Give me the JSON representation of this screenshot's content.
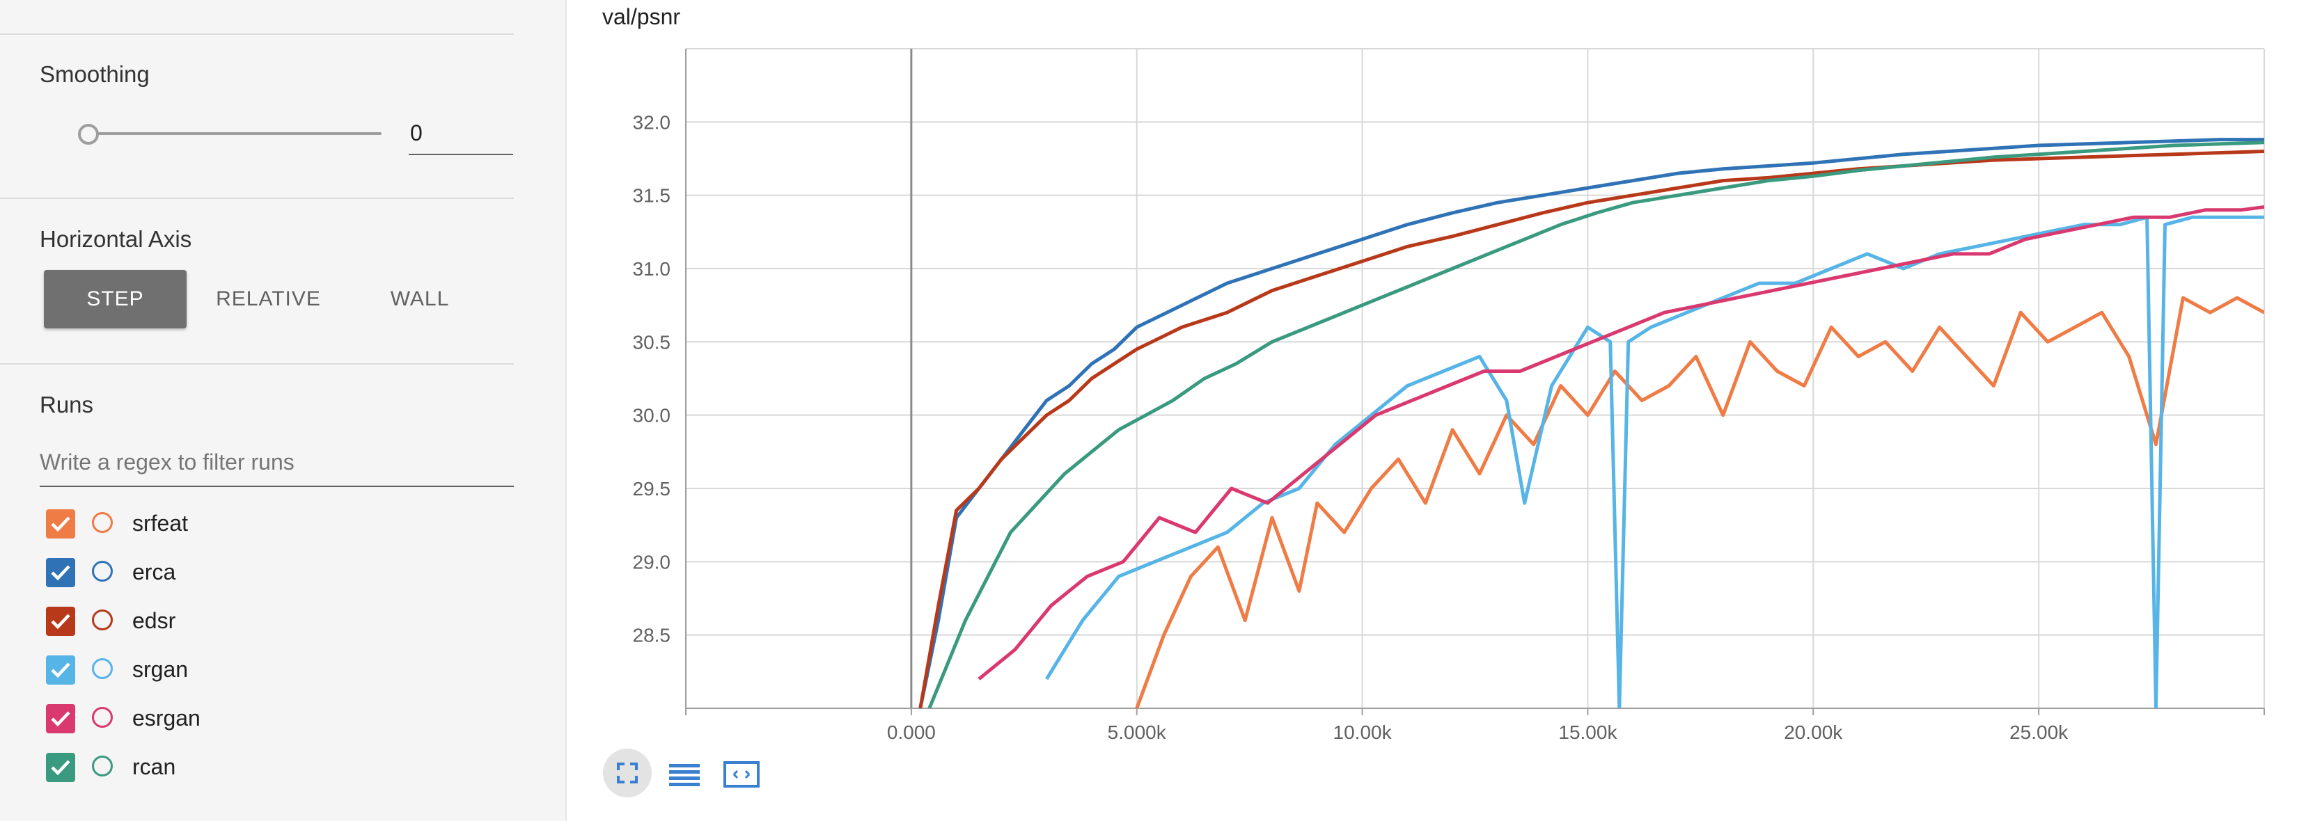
{
  "sidebar": {
    "smoothing": {
      "title": "Smoothing",
      "value": "0",
      "slider_level": 0
    },
    "horizontal_axis": {
      "title": "Horizontal Axis",
      "options": [
        {
          "label": "STEP",
          "active": true
        },
        {
          "label": "RELATIVE",
          "active": false
        },
        {
          "label": "WALL",
          "active": false
        }
      ]
    },
    "runs": {
      "title": "Runs",
      "filter_placeholder": "Write a regex to filter runs",
      "items": [
        {
          "name": "srfeat",
          "color": "#ef7b45",
          "checked": true
        },
        {
          "name": "erca",
          "color": "#2f73b6",
          "checked": true
        },
        {
          "name": "edsr",
          "color": "#b8391a",
          "checked": true
        },
        {
          "name": "srgan",
          "color": "#56b4e6",
          "checked": true
        },
        {
          "name": "esrgan",
          "color": "#d9396f",
          "checked": true
        },
        {
          "name": "rcan",
          "color": "#3a9a7f",
          "checked": true
        }
      ]
    }
  },
  "chart_data": {
    "type": "line",
    "title": "val/psnr",
    "x_tick_labels": [
      "0.000",
      "5.000k",
      "10.00k",
      "15.00k",
      "20.00k",
      "25.00k"
    ],
    "x_ticks": [
      0,
      5000,
      10000,
      15000,
      20000,
      25000
    ],
    "y_tick_labels": [
      "28.5",
      "29.0",
      "29.5",
      "30.0",
      "30.5",
      "31.0",
      "31.5",
      "32.0"
    ],
    "y_ticks": [
      28.5,
      29.0,
      29.5,
      30.0,
      30.5,
      31.0,
      31.5,
      32.0
    ],
    "xlim": [
      -5000,
      30000
    ],
    "ylim": [
      28.0,
      32.5
    ],
    "grid": true,
    "series": [
      {
        "name": "srfeat",
        "color": "#ef7b45",
        "x": [
          5000,
          5600,
          6200,
          6800,
          7400,
          8000,
          8600,
          9000,
          9600,
          10200,
          10800,
          11400,
          12000,
          12600,
          13200,
          13800,
          14400,
          15000,
          15600,
          16200,
          16800,
          17400,
          18000,
          18600,
          19200,
          19800,
          20400,
          21000,
          21600,
          22200,
          22800,
          23400,
          24000,
          24600,
          25200,
          25800,
          26400,
          27000,
          27600,
          28200,
          28800,
          29400,
          30000
        ],
        "y": [
          28.0,
          28.5,
          28.9,
          29.1,
          28.6,
          29.3,
          28.8,
          29.4,
          29.2,
          29.5,
          29.7,
          29.4,
          29.9,
          29.6,
          30.0,
          29.8,
          30.2,
          30.0,
          30.3,
          30.1,
          30.2,
          30.4,
          30.0,
          30.5,
          30.3,
          30.2,
          30.6,
          30.4,
          30.5,
          30.3,
          30.6,
          30.4,
          30.2,
          30.7,
          30.5,
          30.6,
          30.7,
          30.4,
          29.8,
          30.8,
          30.7,
          30.8,
          30.7
        ]
      },
      {
        "name": "erca",
        "color": "#2f73b6",
        "x": [
          200,
          600,
          1000,
          1500,
          2000,
          2500,
          3000,
          3500,
          4000,
          4500,
          5000,
          6000,
          7000,
          8000,
          9000,
          10000,
          11000,
          12000,
          13000,
          14000,
          15000,
          16000,
          17000,
          18000,
          19000,
          20000,
          21000,
          22000,
          23000,
          24000,
          25000,
          26000,
          27000,
          28000,
          29000,
          30000
        ],
        "y": [
          28.0,
          28.6,
          29.3,
          29.5,
          29.7,
          29.9,
          30.1,
          30.2,
          30.35,
          30.45,
          30.6,
          30.75,
          30.9,
          31.0,
          31.1,
          31.2,
          31.3,
          31.38,
          31.45,
          31.5,
          31.55,
          31.6,
          31.65,
          31.68,
          31.7,
          31.72,
          31.75,
          31.78,
          31.8,
          31.82,
          31.84,
          31.85,
          31.86,
          31.87,
          31.88,
          31.88
        ]
      },
      {
        "name": "edsr",
        "color": "#b8391a",
        "x": [
          200,
          600,
          1000,
          1500,
          2000,
          2500,
          3000,
          3500,
          4000,
          4500,
          5000,
          6000,
          7000,
          8000,
          9000,
          10000,
          11000,
          12000,
          13000,
          14000,
          15000,
          16000,
          17000,
          18000,
          19000,
          20000,
          21000,
          22000,
          23000,
          24000,
          25000,
          26000,
          27000,
          28000,
          29000,
          30000
        ],
        "y": [
          28.0,
          28.7,
          29.35,
          29.5,
          29.7,
          29.85,
          30.0,
          30.1,
          30.25,
          30.35,
          30.45,
          30.6,
          30.7,
          30.85,
          30.95,
          31.05,
          31.15,
          31.22,
          31.3,
          31.38,
          31.45,
          31.5,
          31.55,
          31.6,
          31.62,
          31.65,
          31.68,
          31.7,
          31.72,
          31.74,
          31.75,
          31.76,
          31.77,
          31.78,
          31.79,
          31.8
        ]
      },
      {
        "name": "srgan",
        "color": "#56b4e6",
        "x": [
          3000,
          3800,
          4600,
          5400,
          6200,
          7000,
          7800,
          8600,
          9400,
          10200,
          11000,
          11800,
          12600,
          13200,
          13600,
          14200,
          15000,
          15500,
          15700,
          15900,
          16400,
          17200,
          18000,
          18800,
          19600,
          20400,
          21200,
          22000,
          22800,
          23600,
          24400,
          25200,
          26000,
          26800,
          27400,
          27600,
          27800,
          28400,
          29200,
          30000
        ],
        "y": [
          28.2,
          28.6,
          28.9,
          29.0,
          29.1,
          29.2,
          29.4,
          29.5,
          29.8,
          30.0,
          30.2,
          30.3,
          30.4,
          30.1,
          29.4,
          30.2,
          30.6,
          30.5,
          28.0,
          30.5,
          30.6,
          30.7,
          30.8,
          30.9,
          30.9,
          31.0,
          31.1,
          31.0,
          31.1,
          31.15,
          31.2,
          31.25,
          31.3,
          31.3,
          31.35,
          28.0,
          31.3,
          31.35,
          31.35,
          31.35
        ]
      },
      {
        "name": "esrgan",
        "color": "#d9396f",
        "x": [
          1500,
          2300,
          3100,
          3900,
          4700,
          5500,
          6300,
          7100,
          7900,
          8700,
          9500,
          10300,
          11100,
          11900,
          12700,
          13500,
          14300,
          15100,
          15900,
          16700,
          17500,
          18300,
          19100,
          19900,
          20700,
          21500,
          22300,
          23100,
          23900,
          24700,
          25500,
          26300,
          27100,
          27900,
          28700,
          29500,
          30000
        ],
        "y": [
          28.2,
          28.4,
          28.7,
          28.9,
          29.0,
          29.3,
          29.2,
          29.5,
          29.4,
          29.6,
          29.8,
          30.0,
          30.1,
          30.2,
          30.3,
          30.3,
          30.4,
          30.5,
          30.6,
          30.7,
          30.75,
          30.8,
          30.85,
          30.9,
          30.95,
          31.0,
          31.05,
          31.1,
          31.1,
          31.2,
          31.25,
          31.3,
          31.35,
          31.35,
          31.4,
          31.4,
          31.42
        ]
      },
      {
        "name": "rcan",
        "color": "#3a9a7f",
        "x": [
          400,
          800,
          1200,
          1700,
          2200,
          2800,
          3400,
          4000,
          4600,
          5200,
          5800,
          6500,
          7200,
          8000,
          8800,
          9600,
          10400,
          11200,
          12000,
          12800,
          13600,
          14400,
          15200,
          16000,
          17000,
          18000,
          19000,
          20000,
          21000,
          22000,
          23000,
          24000,
          25000,
          26000,
          27000,
          28000,
          29000,
          30000
        ],
        "y": [
          28.0,
          28.3,
          28.6,
          28.9,
          29.2,
          29.4,
          29.6,
          29.75,
          29.9,
          30.0,
          30.1,
          30.25,
          30.35,
          30.5,
          30.6,
          30.7,
          30.8,
          30.9,
          31.0,
          31.1,
          31.2,
          31.3,
          31.38,
          31.45,
          31.5,
          31.55,
          31.6,
          31.63,
          31.67,
          31.7,
          31.73,
          31.76,
          31.78,
          31.8,
          31.82,
          31.84,
          31.85,
          31.86
        ]
      }
    ]
  },
  "toolbar": {
    "icons": [
      "fullscreen-icon",
      "list-icon",
      "fit-domain-icon"
    ]
  }
}
